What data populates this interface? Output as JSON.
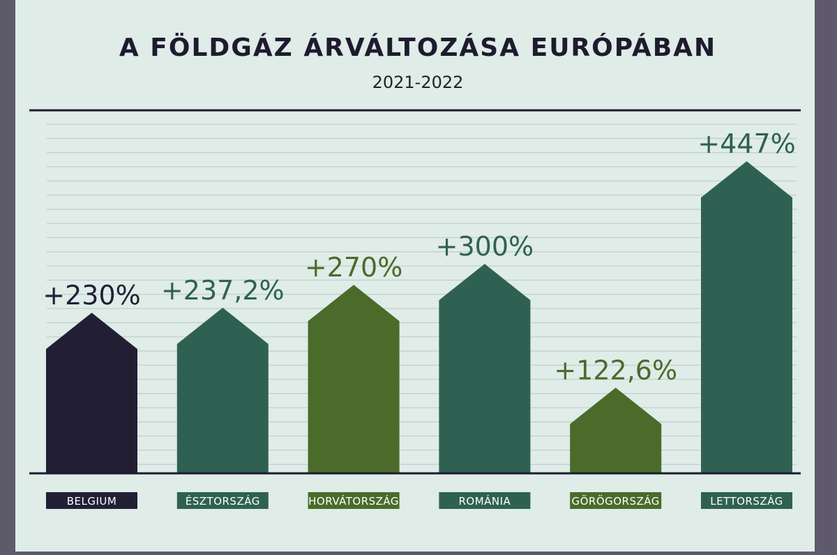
{
  "chart_data": {
    "type": "bar",
    "title": "A FÖLDGÁZ ÁRVÁLTOZÁSA EURÓPÁBAN",
    "subtitle": "2021-2022",
    "categories": [
      "BELGIUM",
      "ÉSZTORSZÁG",
      "HORVÁTORSZÁG",
      "ROMÁNIA",
      "GÖRÖGORSZÁG",
      "LETTORSZÁG"
    ],
    "values": [
      230,
      237.2,
      270,
      300,
      122.6,
      447
    ],
    "value_labels": [
      "+230%",
      "+237,2%",
      "+270%",
      "+300%",
      "+122,6%",
      "+447%"
    ],
    "colors": [
      "#221f35",
      "#2f6152",
      "#4a6b2a",
      "#2f6152",
      "#4a6b2a",
      "#2f6152"
    ],
    "label_colors": [
      "#221f35",
      "#2f6152",
      "#4a6b2a",
      "#2f6152",
      "#4a6b2a",
      "#2f6152"
    ],
    "ylim": [
      0,
      520
    ],
    "grid": true,
    "legend": "none"
  }
}
